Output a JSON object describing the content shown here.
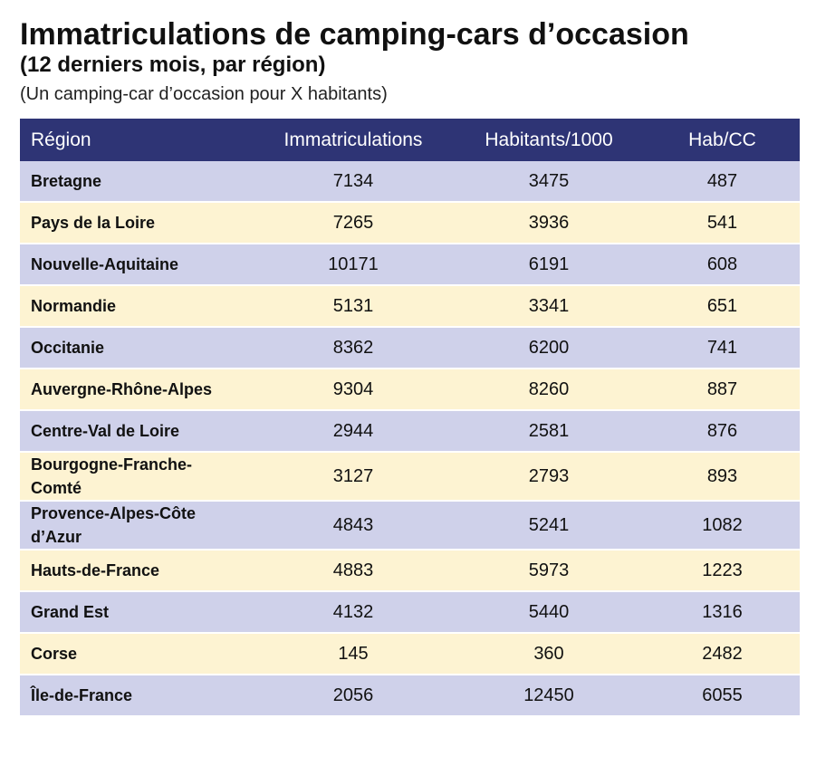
{
  "header": {
    "title": "Immatriculations de camping-cars d’occasion",
    "subtitle": "(12 derniers mois, par région)",
    "note": "(Un camping-car d’occasion pour X habitants)"
  },
  "table": {
    "columns": [
      "Région",
      "Immatriculations",
      "Habitants/1000",
      "Hab/CC"
    ],
    "rows": [
      [
        "Bretagne",
        7134,
        3475,
        487
      ],
      [
        "Pays de la Loire",
        7265,
        3936,
        541
      ],
      [
        "Nouvelle-Aquitaine",
        10171,
        6191,
        608
      ],
      [
        "Normandie",
        5131,
        3341,
        651
      ],
      [
        "Occitanie",
        8362,
        6200,
        741
      ],
      [
        "Auvergne-Rhône-Alpes",
        9304,
        8260,
        887
      ],
      [
        "Centre-Val de Loire",
        2944,
        2581,
        876
      ],
      [
        "Bourgogne-Franche-Comté",
        3127,
        2793,
        893
      ],
      [
        "Provence-Alpes-Côte d’Azur",
        4843,
        5241,
        1082
      ],
      [
        "Hauts-de-France",
        4883,
        5973,
        1223
      ],
      [
        "Grand Est",
        4132,
        5440,
        1316
      ],
      [
        "Corse",
        145,
        360,
        2482
      ],
      [
        "Île-de-France",
        2056,
        12450,
        6055
      ]
    ]
  }
}
